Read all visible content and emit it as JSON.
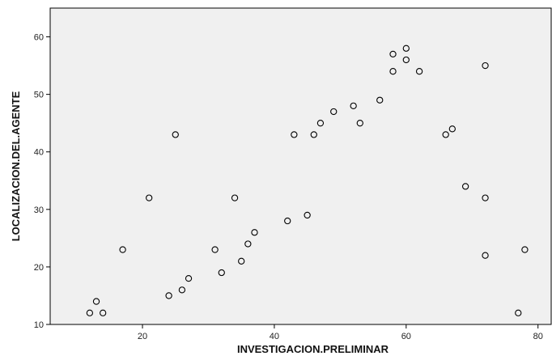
{
  "chart_data": {
    "type": "scatter",
    "xlabel": "INVESTIGACION.PRELIMINAR",
    "ylabel": "LOCALIZACION.DEL.AGENTE",
    "xlim": [
      6,
      82
    ],
    "ylim": [
      10,
      65
    ],
    "x_ticks": [
      "20",
      "40",
      "60",
      "80"
    ],
    "y_ticks": [
      "10",
      "20",
      "30",
      "40",
      "50",
      "60"
    ],
    "grid": false,
    "colors": {
      "plot_background": "#f0f0f0",
      "marker_stroke": "#000000",
      "marker_fill": "#f0f0f0",
      "axis": "#000000"
    },
    "points": [
      {
        "x": 12,
        "y": 12
      },
      {
        "x": 13,
        "y": 14
      },
      {
        "x": 14,
        "y": 12
      },
      {
        "x": 17,
        "y": 23
      },
      {
        "x": 21,
        "y": 32
      },
      {
        "x": 24,
        "y": 15
      },
      {
        "x": 25,
        "y": 43
      },
      {
        "x": 26,
        "y": 16
      },
      {
        "x": 27,
        "y": 18
      },
      {
        "x": 31,
        "y": 23
      },
      {
        "x": 32,
        "y": 19
      },
      {
        "x": 34,
        "y": 32
      },
      {
        "x": 35,
        "y": 21
      },
      {
        "x": 36,
        "y": 24
      },
      {
        "x": 37,
        "y": 26
      },
      {
        "x": 42,
        "y": 28
      },
      {
        "x": 43,
        "y": 43
      },
      {
        "x": 45,
        "y": 29
      },
      {
        "x": 46,
        "y": 43
      },
      {
        "x": 47,
        "y": 45
      },
      {
        "x": 49,
        "y": 47
      },
      {
        "x": 52,
        "y": 48
      },
      {
        "x": 53,
        "y": 45
      },
      {
        "x": 56,
        "y": 49
      },
      {
        "x": 58,
        "y": 57
      },
      {
        "x": 58,
        "y": 54
      },
      {
        "x": 60,
        "y": 58
      },
      {
        "x": 60,
        "y": 56
      },
      {
        "x": 62,
        "y": 54
      },
      {
        "x": 66,
        "y": 43
      },
      {
        "x": 67,
        "y": 44
      },
      {
        "x": 69,
        "y": 34
      },
      {
        "x": 72,
        "y": 55
      },
      {
        "x": 72,
        "y": 32
      },
      {
        "x": 72,
        "y": 22
      },
      {
        "x": 77,
        "y": 12
      },
      {
        "x": 78,
        "y": 23
      }
    ]
  }
}
